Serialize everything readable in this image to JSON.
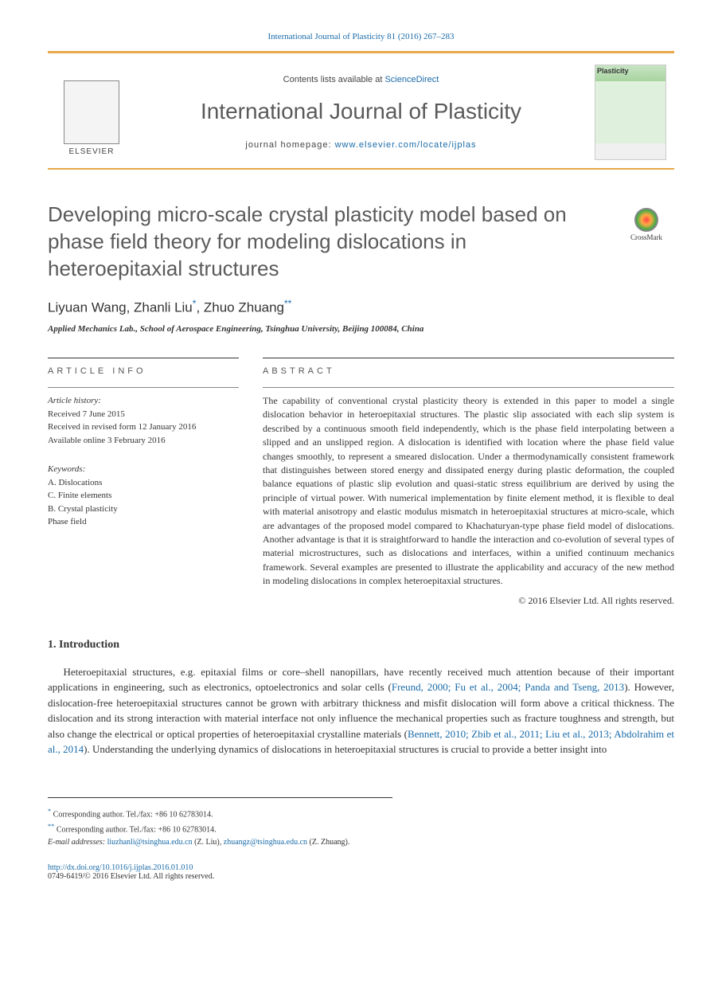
{
  "citation": "International Journal of Plasticity 81 (2016) 267–283",
  "banner": {
    "contents_prefix": "Contents lists available at ",
    "contents_link": "ScienceDirect",
    "journal_name": "International Journal of Plasticity",
    "homepage_prefix": "journal homepage: ",
    "homepage_url": "www.elsevier.com/locate/ijplas",
    "publisher": "ELSEVIER",
    "cover_label": "Plasticity"
  },
  "crossmark": "CrossMark",
  "title": "Developing micro-scale crystal plasticity model based on phase field theory for modeling dislocations in heteroepitaxial structures",
  "authors_html": "Liyuan Wang, Zhanli Liu<sup>*</sup>, Zhuo Zhuang<sup>**</sup>",
  "affiliation": "Applied Mechanics Lab., School of Aerospace Engineering, Tsinghua University, Beijing 100084, China",
  "info_header": "ARTICLE INFO",
  "abstract_header": "ABSTRACT",
  "history": {
    "label": "Article history:",
    "received": "Received 7 June 2015",
    "revised": "Received in revised form 12 January 2016",
    "online": "Available online 3 February 2016"
  },
  "keywords": {
    "label": "Keywords:",
    "items": [
      "A. Dislocations",
      "C. Finite elements",
      "B. Crystal plasticity",
      "Phase field"
    ]
  },
  "abstract": "The capability of conventional crystal plasticity theory is extended in this paper to model a single dislocation behavior in heteroepitaxial structures. The plastic slip associated with each slip system is described by a continuous smooth field independently, which is the phase field interpolating between a slipped and an unslipped region. A dislocation is identified with location where the phase field value changes smoothly, to represent a smeared dislocation. Under a thermodynamically consistent framework that distinguishes between stored energy and dissipated energy during plastic deformation, the coupled balance equations of plastic slip evolution and quasi-static stress equilibrium are derived by using the principle of virtual power. With numerical implementation by finite element method, it is flexible to deal with material anisotropy and elastic modulus mismatch in heteroepitaxial structures at micro-scale, which are advantages of the proposed model compared to Khachaturyan-type phase field model of dislocations. Another advantage is that it is straightforward to handle the interaction and co-evolution of several types of material microstructures, such as dislocations and interfaces, within a unified continuum mechanics framework. Several examples are presented to illustrate the applicability and accuracy of the new method in modeling dislocations in complex heteroepitaxial structures.",
  "copyright": "© 2016 Elsevier Ltd. All rights reserved.",
  "intro_header": "1. Introduction",
  "intro_body_html": "Heteroepitaxial structures, e.g. epitaxial films or core–shell nanopillars, have recently received much attention because of their important applications in engineering, such as electronics, optoelectronics and solar cells (<a href='#'>Freund, 2000; Fu et al., 2004; Panda and Tseng, 2013</a>). However, dislocation-free heteroepitaxial structures cannot be grown with arbitrary thickness and misfit dislocation will form above a critical thickness. The dislocation and its strong interaction with material interface not only influence the mechanical properties such as fracture toughness and strength, but also change the electrical or optical properties of heteroepitaxial crystalline materials (<a href='#'>Bennett, 2010; Zbib et al., 2011; Liu et al., 2013; Abdolrahim et al., 2014</a>). Understanding the underlying dynamics of dislocations in heteroepitaxial structures is crucial to provide a better insight into",
  "footnotes": {
    "f1_html": "<sup>*</sup> Corresponding author. Tel./fax: +86 10 62783014.",
    "f2_html": "<sup>**</sup> Corresponding author. Tel./fax: +86 10 62783014.",
    "email_label": "E-mail addresses:",
    "email1": "liuzhanli@tsinghua.edu.cn",
    "email1_name": "(Z. Liu),",
    "email2": "zhuangz@tsinghua.edu.cn",
    "email2_name": "(Z. Zhuang)."
  },
  "doi": {
    "url": "http://dx.doi.org/10.1016/j.ijplas.2016.01.010",
    "line": "0749-6419/© 2016 Elsevier Ltd. All rights reserved."
  },
  "colors": {
    "link": "#1a6ba8",
    "accent": "#e8a84a",
    "heading": "#5a5a5a"
  }
}
